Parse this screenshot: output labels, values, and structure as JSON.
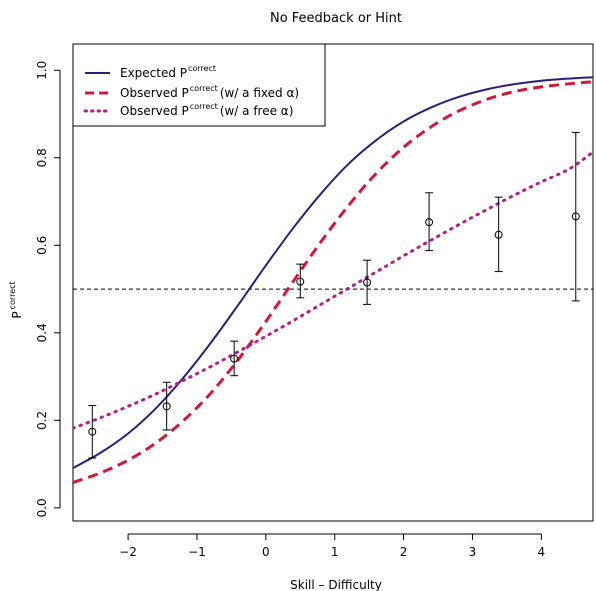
{
  "chart_data": {
    "type": "line",
    "title": "No Feedback or Hint",
    "xlabel": "Skill – Difficulty",
    "ylabel": "P",
    "ylabel_sup": "correct",
    "xlim": [
      -2.8,
      4.75
    ],
    "ylim": [
      -0.03,
      1.06
    ],
    "x_ticks": [
      -2,
      -1,
      0,
      1,
      2,
      3,
      4
    ],
    "x_tick_labels": [
      "−2",
      "−1",
      "0",
      "1",
      "2",
      "3",
      "4"
    ],
    "y_ticks": [
      0.0,
      0.2,
      0.4,
      0.6,
      0.8,
      1.0
    ],
    "y_tick_labels": [
      "0.0",
      "0.2",
      "0.4",
      "0.6",
      "0.8",
      "1.0"
    ],
    "reference_line": {
      "y": 0.5,
      "style": "dashed",
      "color": "#000000"
    },
    "legend": {
      "placement": "top-left",
      "entries": [
        {
          "prefix": "Expected  P",
          "sup": "correct",
          "suffix": "",
          "series": 0
        },
        {
          "prefix": "Observed  P",
          "sup": "correct",
          "suffix": "(w/ a fixed  α)",
          "series": 1
        },
        {
          "prefix": "Observed  P",
          "sup": "correct",
          "suffix": "(w/ a free  α)",
          "series": 2
        }
      ]
    },
    "series": [
      {
        "style": "solid",
        "color": "#2b1f7a",
        "x": [
          -2.8,
          -2.4,
          -2.0,
          -1.6,
          -1.2,
          -0.8,
          -0.4,
          0.0,
          0.4,
          0.8,
          1.2,
          1.6,
          2.0,
          2.4,
          2.8,
          3.2,
          3.6,
          4.0,
          4.4,
          4.75
        ],
        "y": [
          0.091,
          0.126,
          0.17,
          0.227,
          0.297,
          0.377,
          0.464,
          0.554,
          0.64,
          0.718,
          0.786,
          0.84,
          0.883,
          0.915,
          0.939,
          0.956,
          0.968,
          0.976,
          0.981,
          0.984
        ]
      },
      {
        "style": "dashed",
        "color": "#d3173b",
        "x": [
          -2.8,
          -2.4,
          -2.0,
          -1.6,
          -1.2,
          -0.8,
          -0.4,
          0.0,
          0.4,
          0.8,
          1.2,
          1.6,
          2.0,
          2.4,
          2.8,
          3.2,
          3.6,
          4.0,
          4.4,
          4.75
        ],
        "y": [
          0.058,
          0.08,
          0.109,
          0.148,
          0.199,
          0.262,
          0.339,
          0.426,
          0.518,
          0.608,
          0.691,
          0.764,
          0.824,
          0.871,
          0.907,
          0.933,
          0.951,
          0.962,
          0.969,
          0.974
        ]
      },
      {
        "style": "dotted",
        "color": "#b0228a",
        "x": [
          -2.8,
          -2.4,
          -2.0,
          -1.6,
          -1.2,
          -0.8,
          -0.4,
          0.0,
          0.4,
          0.8,
          1.2,
          1.6,
          2.0,
          2.4,
          2.8,
          3.2,
          3.6,
          4.0,
          4.4,
          4.75
        ],
        "y": [
          0.182,
          0.206,
          0.232,
          0.26,
          0.291,
          0.323,
          0.357,
          0.392,
          0.428,
          0.465,
          0.502,
          0.539,
          0.576,
          0.612,
          0.647,
          0.681,
          0.714,
          0.745,
          0.774,
          0.813
        ]
      },
      {
        "style": "points-with-error-bars",
        "color": "#000000",
        "x": [
          -2.52,
          -1.44,
          -0.46,
          0.5,
          1.47,
          2.37,
          3.38,
          4.5
        ],
        "y": [
          0.174,
          0.232,
          0.341,
          0.517,
          0.515,
          0.653,
          0.624,
          0.666
        ],
        "y_low": [
          0.114,
          0.178,
          0.302,
          0.48,
          0.465,
          0.588,
          0.54,
          0.473
        ],
        "y_high": [
          0.234,
          0.287,
          0.381,
          0.557,
          0.566,
          0.72,
          0.71,
          0.858
        ]
      }
    ]
  }
}
